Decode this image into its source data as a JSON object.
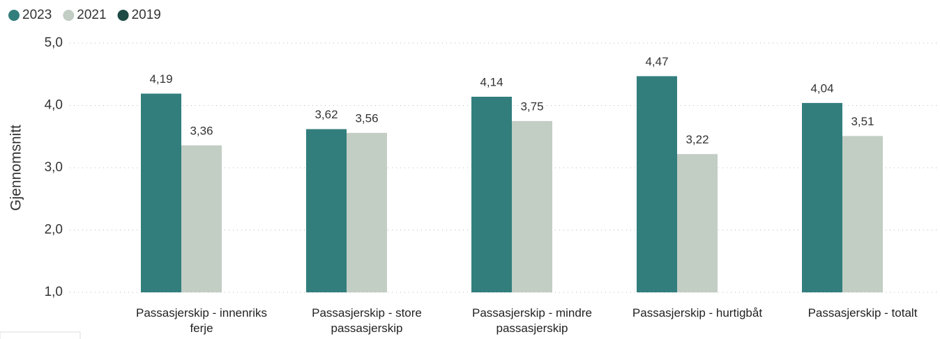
{
  "chart_data": {
    "type": "bar",
    "y_label": "Gjennomsnitt",
    "categories": [
      "Passasjerskip - innenriks ferje",
      "Passasjerskip - store passasjerskip",
      "Passasjerskip - mindre passasjerskip",
      "Passasjerskip - hurtigbåt",
      "Passasjerskip - totalt"
    ],
    "series": [
      {
        "name": "2023",
        "color": "#327e7d",
        "values": [
          4.19,
          3.62,
          4.14,
          4.47,
          4.04
        ],
        "value_labels": [
          "4,19",
          "3,62",
          "4,14",
          "4,47",
          "4,04"
        ]
      },
      {
        "name": "2021",
        "color": "#c2cdc4",
        "values": [
          3.36,
          3.56,
          3.75,
          3.22,
          3.51
        ],
        "value_labels": [
          "3,36",
          "3,56",
          "3,75",
          "3,22",
          "3,51"
        ]
      },
      {
        "name": "2019",
        "color": "#1d4a45",
        "values": [
          null,
          null,
          null,
          null,
          null
        ]
      }
    ],
    "ylim": [
      1,
      5
    ],
    "yticks": [
      {
        "value": 1,
        "label": "1,0"
      },
      {
        "value": 2,
        "label": "2,0"
      },
      {
        "value": 3,
        "label": "3,0"
      },
      {
        "value": 4,
        "label": "4,0"
      },
      {
        "value": 5,
        "label": "5,0"
      }
    ],
    "grid": true
  }
}
